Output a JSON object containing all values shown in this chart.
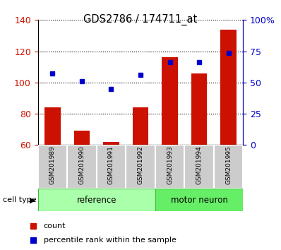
{
  "title": "GDS2786 / 174711_at",
  "samples": [
    "GSM201989",
    "GSM201990",
    "GSM201991",
    "GSM201992",
    "GSM201993",
    "GSM201994",
    "GSM201995"
  ],
  "counts": [
    84,
    69,
    62,
    84,
    116,
    106,
    134
  ],
  "percentile_ranks_left_scale": [
    106,
    101,
    96,
    105,
    113,
    113,
    119
  ],
  "ylim_left": [
    60,
    140
  ],
  "ylim_right": [
    0,
    100
  ],
  "yticks_left": [
    60,
    80,
    100,
    120,
    140
  ],
  "ytick_labels_left": [
    "60",
    "80",
    "100",
    "120",
    "140"
  ],
  "yticks_right": [
    0,
    25,
    50,
    75,
    100
  ],
  "ytick_labels_right": [
    "0",
    "25",
    "50",
    "75",
    "100%"
  ],
  "bar_color": "#cc1100",
  "dot_color": "#0000cc",
  "ref_color": "#aaffaa",
  "mn_color": "#66ee66",
  "ref_border": "#44bb44",
  "mn_border": "#44bb44",
  "left_axis_color": "#cc1100",
  "right_axis_color": "#0000cc",
  "num_ref": 4,
  "num_mn": 3
}
